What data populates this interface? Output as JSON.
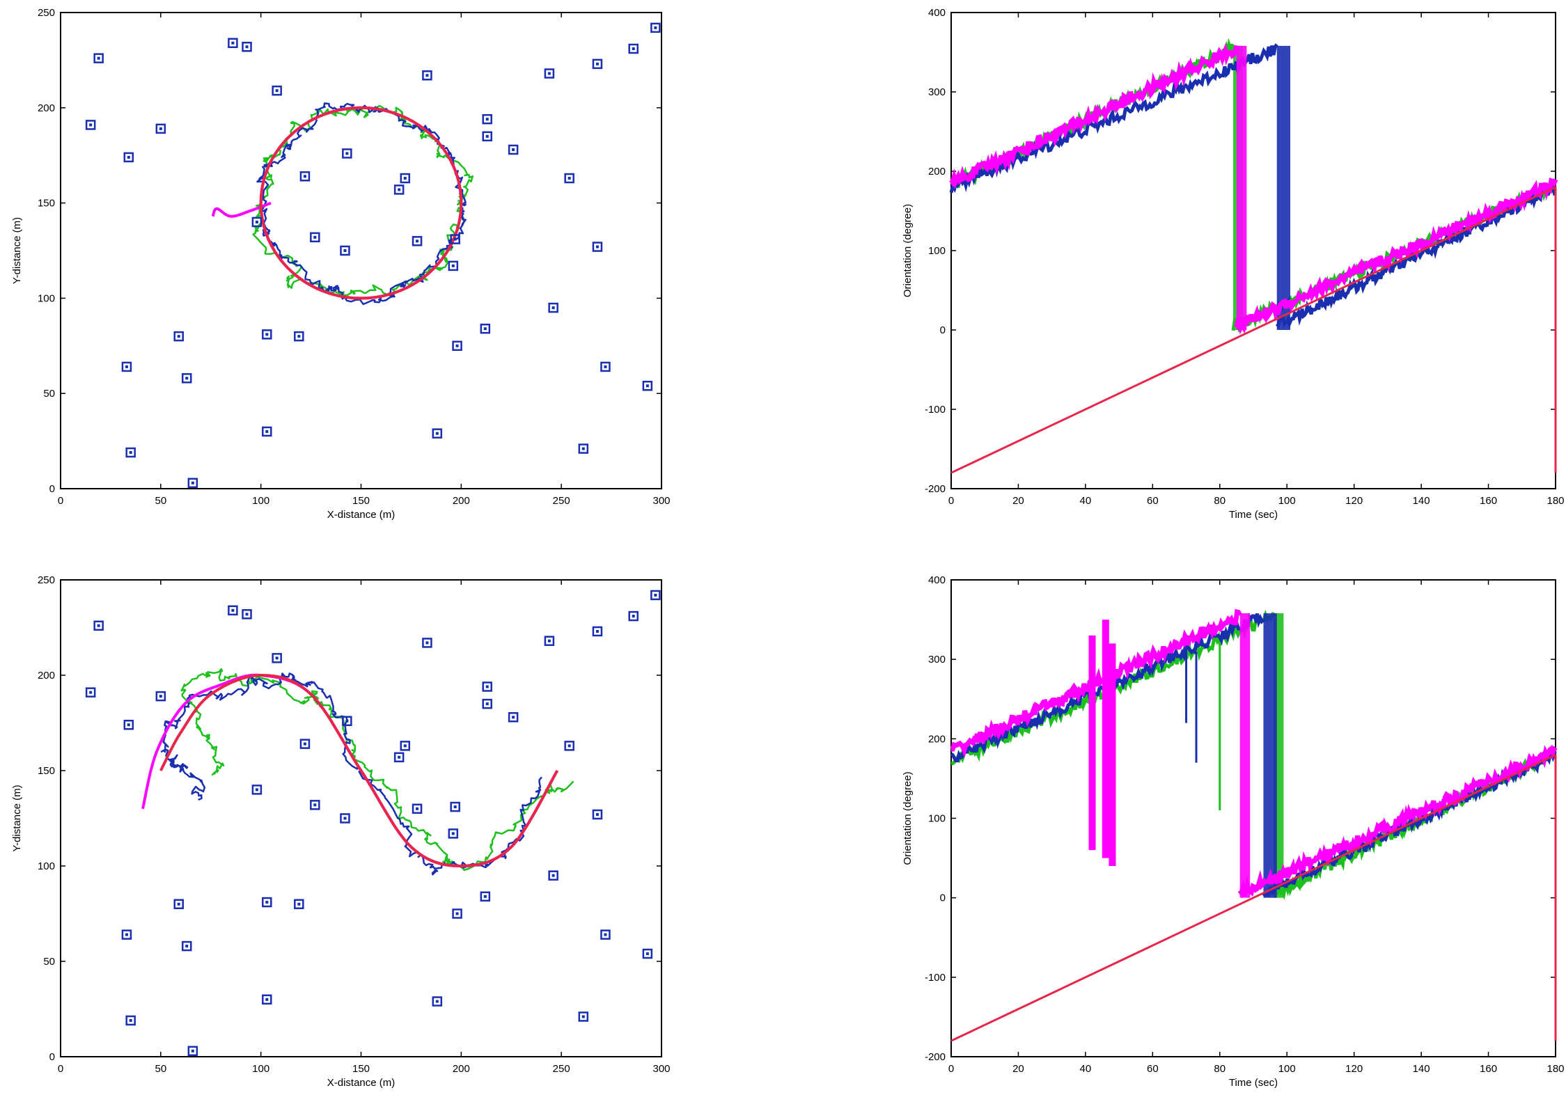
{
  "chart_data": [
    {
      "type": "scatter",
      "title": "",
      "xlabel": "X-distance (m)",
      "ylabel": "Y-distance (m)",
      "xlim": [
        0,
        300
      ],
      "ylim": [
        0,
        250
      ],
      "xticks": [
        0,
        50,
        100,
        150,
        200,
        250,
        300
      ],
      "yticks": [
        0,
        50,
        100,
        150,
        200,
        250
      ],
      "grid": false,
      "landmarks": [
        [
          19,
          226
        ],
        [
          86,
          234
        ],
        [
          93,
          232
        ],
        [
          108,
          209
        ],
        [
          183,
          217
        ],
        [
          244,
          218
        ],
        [
          268,
          223
        ],
        [
          286,
          231
        ],
        [
          297,
          242
        ],
        [
          15,
          191
        ],
        [
          50,
          189
        ],
        [
          34,
          174
        ],
        [
          122,
          164
        ],
        [
          143,
          176
        ],
        [
          172,
          163
        ],
        [
          169,
          157
        ],
        [
          213,
          194
        ],
        [
          213,
          185
        ],
        [
          226,
          178
        ],
        [
          254,
          163
        ],
        [
          98,
          140
        ],
        [
          127,
          132
        ],
        [
          142,
          125
        ],
        [
          178,
          130
        ],
        [
          197,
          131
        ],
        [
          196,
          117
        ],
        [
          268,
          127
        ],
        [
          59,
          80
        ],
        [
          103,
          81
        ],
        [
          119,
          80
        ],
        [
          198,
          75
        ],
        [
          212,
          84
        ],
        [
          246,
          95
        ],
        [
          33,
          64
        ],
        [
          63,
          58
        ],
        [
          272,
          64
        ],
        [
          293,
          54
        ],
        [
          103,
          30
        ],
        [
          188,
          29
        ],
        [
          261,
          21
        ],
        [
          35,
          19
        ],
        [
          66,
          3
        ]
      ],
      "series": [
        {
          "color": "#e8264a",
          "shape": "circle",
          "center": [
            150,
            150
          ],
          "radius": 50
        },
        {
          "color": "#ff00ff",
          "shape": "circle",
          "center": [
            150,
            150
          ],
          "radius": 50,
          "tail": [
            [
              105,
              150
            ],
            [
              95,
              146
            ],
            [
              85,
              143
            ],
            [
              78,
              147
            ],
            [
              76,
              143
            ]
          ]
        },
        {
          "color": "#1a2fb0",
          "shape": "circle",
          "center": [
            150,
            150
          ],
          "radius": 50,
          "noise": 6
        },
        {
          "color": "#1ec01e",
          "shape": "circle",
          "center": [
            150,
            150
          ],
          "radius": 50,
          "noise": 7
        }
      ]
    },
    {
      "type": "line",
      "title": "",
      "xlabel": "Time (sec)",
      "ylabel": "Orientation (degree)",
      "xlim": [
        0,
        180
      ],
      "ylim": [
        -200,
        400
      ],
      "xticks": [
        0,
        20,
        40,
        60,
        80,
        100,
        120,
        140,
        160,
        180
      ],
      "yticks": [
        -200,
        -100,
        0,
        100,
        200,
        300,
        400
      ],
      "grid": false,
      "series": [
        {
          "color": "#e8264a",
          "points": [
            [
              0,
              -180
            ],
            [
              180,
              180
            ]
          ]
        },
        {
          "color": "#ff00ff",
          "points": [
            [
              0,
              185
            ],
            [
              85,
              355
            ],
            [
              85,
              5
            ],
            [
              180,
              185
            ]
          ]
        },
        {
          "color": "#1a2fb0",
          "points": [
            [
              0,
              180
            ],
            [
              97,
              355
            ],
            [
              97,
              5
            ],
            [
              180,
              180
            ]
          ]
        },
        {
          "color": "#1ec01e",
          "points": [
            [
              0,
              182
            ],
            [
              84,
              355
            ],
            [
              84,
              5
            ],
            [
              180,
              182
            ]
          ]
        }
      ]
    },
    {
      "type": "scatter",
      "title": "",
      "xlabel": "X-distance (m)",
      "ylabel": "Y-distance (m)",
      "xlim": [
        0,
        300
      ],
      "ylim": [
        0,
        250
      ],
      "xticks": [
        0,
        50,
        100,
        150,
        200,
        250,
        300
      ],
      "yticks": [
        0,
        50,
        100,
        150,
        200,
        250
      ],
      "grid": false,
      "landmarks": [
        [
          19,
          226
        ],
        [
          86,
          234
        ],
        [
          93,
          232
        ],
        [
          108,
          209
        ],
        [
          183,
          217
        ],
        [
          244,
          218
        ],
        [
          268,
          223
        ],
        [
          286,
          231
        ],
        [
          297,
          242
        ],
        [
          15,
          191
        ],
        [
          50,
          189
        ],
        [
          34,
          174
        ],
        [
          122,
          164
        ],
        [
          143,
          176
        ],
        [
          172,
          163
        ],
        [
          169,
          157
        ],
        [
          213,
          194
        ],
        [
          213,
          185
        ],
        [
          226,
          178
        ],
        [
          254,
          163
        ],
        [
          98,
          140
        ],
        [
          127,
          132
        ],
        [
          142,
          125
        ],
        [
          178,
          130
        ],
        [
          197,
          131
        ],
        [
          196,
          117
        ],
        [
          268,
          127
        ],
        [
          59,
          80
        ],
        [
          103,
          81
        ],
        [
          119,
          80
        ],
        [
          198,
          75
        ],
        [
          212,
          84
        ],
        [
          246,
          95
        ],
        [
          33,
          64
        ],
        [
          63,
          58
        ],
        [
          272,
          64
        ],
        [
          293,
          54
        ],
        [
          103,
          30
        ],
        [
          188,
          29
        ],
        [
          261,
          21
        ],
        [
          35,
          19
        ],
        [
          66,
          3
        ]
      ],
      "series": [
        {
          "color": "#e8264a",
          "shape": "sine",
          "points": [
            [
              50,
              150
            ],
            [
              60,
              170
            ],
            [
              75,
              190
            ],
            [
              100,
              200
            ],
            [
              125,
              190
            ],
            [
              150,
              150
            ],
            [
              175,
              110
            ],
            [
              200,
              100
            ],
            [
              225,
              110
            ],
            [
              248,
              150
            ]
          ]
        },
        {
          "color": "#ff00ff",
          "shape": "sine",
          "points": [
            [
              41,
              130
            ],
            [
              48,
              160
            ],
            [
              62,
              185
            ],
            [
              80,
              195
            ],
            [
              100,
              200
            ],
            [
              125,
              190
            ],
            [
              150,
              150
            ],
            [
              175,
              110
            ],
            [
              200,
              100
            ],
            [
              225,
              110
            ],
            [
              248,
              150
            ]
          ]
        },
        {
          "color": "#1a2fb0",
          "shape": "sine",
          "noise": 7,
          "points": [
            [
              70,
              135
            ],
            [
              60,
              150
            ],
            [
              50,
              165
            ],
            [
              65,
              185
            ],
            [
              90,
              195
            ],
            [
              110,
              198
            ],
            [
              130,
              185
            ],
            [
              150,
              150
            ],
            [
              175,
              110
            ],
            [
              200,
              102
            ],
            [
              225,
              112
            ],
            [
              245,
              150
            ]
          ]
        },
        {
          "color": "#1ec01e",
          "shape": "sine",
          "noise": 7,
          "points": [
            [
              75,
              150
            ],
            [
              70,
              170
            ],
            [
              62,
              190
            ],
            [
              90,
              197
            ],
            [
              115,
              195
            ],
            [
              135,
              180
            ],
            [
              155,
              145
            ],
            [
              180,
              112
            ],
            [
              205,
              100
            ],
            [
              230,
              125
            ],
            [
              255,
              145
            ]
          ]
        }
      ]
    },
    {
      "type": "line",
      "title": "",
      "xlabel": "Time (sec)",
      "ylabel": "Orientation (degree)",
      "xlim": [
        0,
        180
      ],
      "ylim": [
        -200,
        400
      ],
      "xticks": [
        0,
        20,
        40,
        60,
        80,
        100,
        120,
        140,
        160,
        180
      ],
      "yticks": [
        -200,
        -100,
        0,
        100,
        200,
        300,
        400
      ],
      "grid": false,
      "series": [
        {
          "color": "#e8264a",
          "points": [
            [
              0,
              -180
            ],
            [
              180,
              180
            ]
          ]
        },
        {
          "color": "#ff00ff",
          "points": [
            [
              0,
              185
            ],
            [
              86,
              355
            ],
            [
              86,
              5
            ],
            [
              180,
              185
            ]
          ],
          "spikes": [
            [
              42,
              60,
              330
            ],
            [
              46,
              50,
              350
            ],
            [
              48,
              40,
              320
            ]
          ]
        },
        {
          "color": "#1a2fb0",
          "points": [
            [
              0,
              175
            ],
            [
              93,
              355
            ],
            [
              93,
              5
            ],
            [
              180,
              180
            ]
          ],
          "spikes": [
            [
              70,
              220,
              320
            ],
            [
              73,
              170,
              310
            ]
          ]
        },
        {
          "color": "#1ec01e",
          "points": [
            [
              0,
              170
            ],
            [
              96,
              355
            ],
            [
              96,
              5
            ],
            [
              180,
              182
            ]
          ],
          "spikes": [
            [
              80,
              110,
              330
            ]
          ]
        }
      ]
    }
  ]
}
